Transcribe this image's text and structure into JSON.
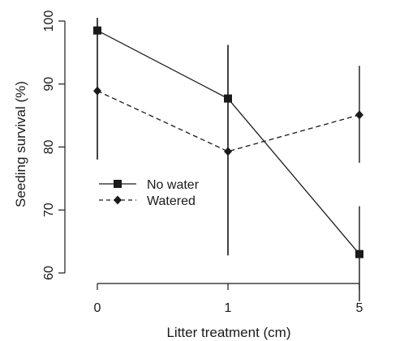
{
  "chart_data": {
    "type": "line",
    "title": "",
    "xlabel": "Litter treatment (cm)",
    "ylabel": "Seeding survival (%)",
    "categories": [
      "0",
      "1",
      "5"
    ],
    "ylim": [
      60,
      100
    ],
    "yticks": [
      "60",
      "70",
      "80",
      "90",
      "100"
    ],
    "grid": false,
    "legend_position": "left",
    "series": [
      {
        "name": "No water",
        "marker": "square",
        "line_style": "solid",
        "values": [
          98.5,
          87.7,
          63.0
        ],
        "error_low": [
          78.0,
          62.8,
          55.5
        ],
        "error_high": [
          100.5,
          96.2,
          70.6
        ]
      },
      {
        "name": "Watered",
        "marker": "diamond",
        "line_style": "dashed",
        "values": [
          88.9,
          79.3,
          85.1
        ],
        "error_low": [
          78.0,
          62.8,
          77.5
        ],
        "error_high": [
          100.5,
          96.2,
          92.9
        ]
      }
    ]
  },
  "colors": {
    "line": "#1a1a1a",
    "background": "#ffffff"
  }
}
